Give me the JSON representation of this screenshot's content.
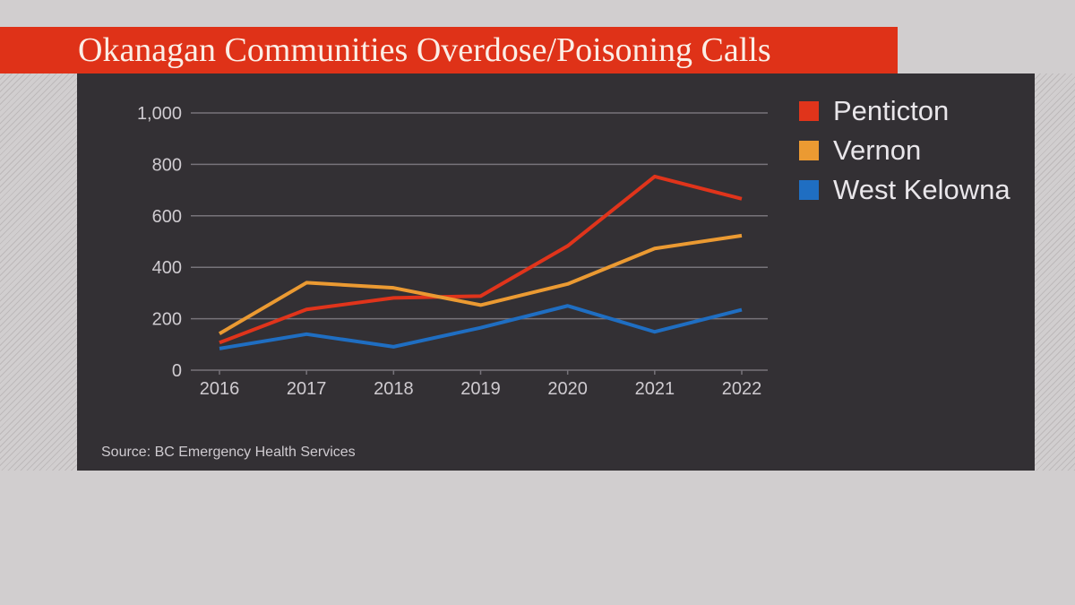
{
  "chart_data": {
    "type": "line",
    "title": "Okanagan Communities Overdose/Poisoning Calls",
    "x": [
      "2016",
      "2017",
      "2018",
      "2019",
      "2020",
      "2021",
      "2022"
    ],
    "ylim": [
      0,
      1000
    ],
    "yticks": [
      0,
      200,
      400,
      600,
      800,
      1000
    ],
    "ytick_labels": [
      "0",
      "200",
      "400",
      "600",
      "800",
      "1,000"
    ],
    "grid": true,
    "legend_position": "right",
    "series": [
      {
        "name": "Penticton",
        "color": "#e0341b",
        "values": [
          107,
          236,
          281,
          288,
          483,
          753,
          666
        ]
      },
      {
        "name": "Vernon",
        "color": "#eb9a32",
        "values": [
          142,
          340,
          320,
          253,
          335,
          473,
          523
        ]
      },
      {
        "name": "West Kelowna",
        "color": "#1f6ec2",
        "values": [
          84,
          140,
          91,
          165,
          250,
          149,
          235
        ]
      }
    ],
    "source": "Source: BC Emergency Health Services"
  }
}
